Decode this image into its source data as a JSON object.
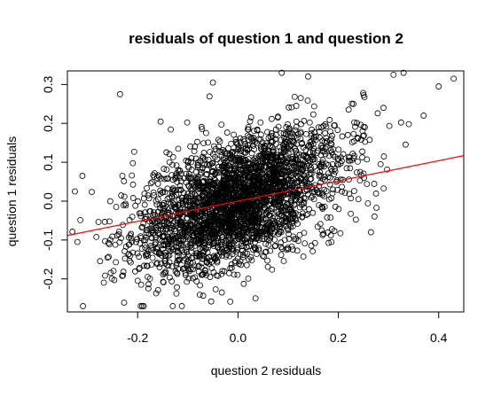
{
  "chart_data": {
    "type": "scatter",
    "title": "residuals of question 1 and question 2",
    "xlabel": "question 2 residuals",
    "ylabel": "question 1 residuals",
    "xlim": [
      -0.34,
      0.45
    ],
    "ylim": [
      -0.285,
      0.335
    ],
    "xticks": [
      -0.2,
      0.0,
      0.2,
      0.4
    ],
    "xtick_labels": [
      "-0.2",
      "0.0",
      "0.2",
      "0.4"
    ],
    "yticks": [
      -0.2,
      -0.1,
      0.0,
      0.1,
      0.2,
      0.3
    ],
    "ytick_labels": [
      "-0.2",
      "-0.1",
      "0.0",
      "0.1",
      "0.2",
      "0.3"
    ],
    "grid": false,
    "legend": "none",
    "marker": "open-circle",
    "point_color": "#000000",
    "line_color": "#ff0000",
    "n_points": 3000,
    "correlation": 0.5,
    "x_mean": 0.0,
    "x_sd": 0.1,
    "y_sd": 0.09,
    "regression_line": {
      "intercept": 0.0,
      "slope": 0.26
    },
    "notable_points": [
      {
        "x": -0.13,
        "y": -0.27
      },
      {
        "x": -0.05,
        "y": 0.305
      },
      {
        "x": 0.33,
        "y": 0.33
      },
      {
        "x": 0.43,
        "y": 0.315
      },
      {
        "x": 0.4,
        "y": 0.295
      },
      {
        "x": 0.31,
        "y": 0.325
      },
      {
        "x": -0.235,
        "y": 0.275
      },
      {
        "x": -0.31,
        "y": 0.065
      },
      {
        "x": -0.325,
        "y": 0.025
      },
      {
        "x": -0.32,
        "y": -0.105
      },
      {
        "x": 0.035,
        "y": -0.25
      },
      {
        "x": 0.23,
        "y": 0.25
      },
      {
        "x": 0.29,
        "y": 0.24
      },
      {
        "x": 0.37,
        "y": 0.22
      },
      {
        "x": -0.18,
        "y": -0.195
      },
      {
        "x": 0.265,
        "y": -0.08
      }
    ]
  }
}
